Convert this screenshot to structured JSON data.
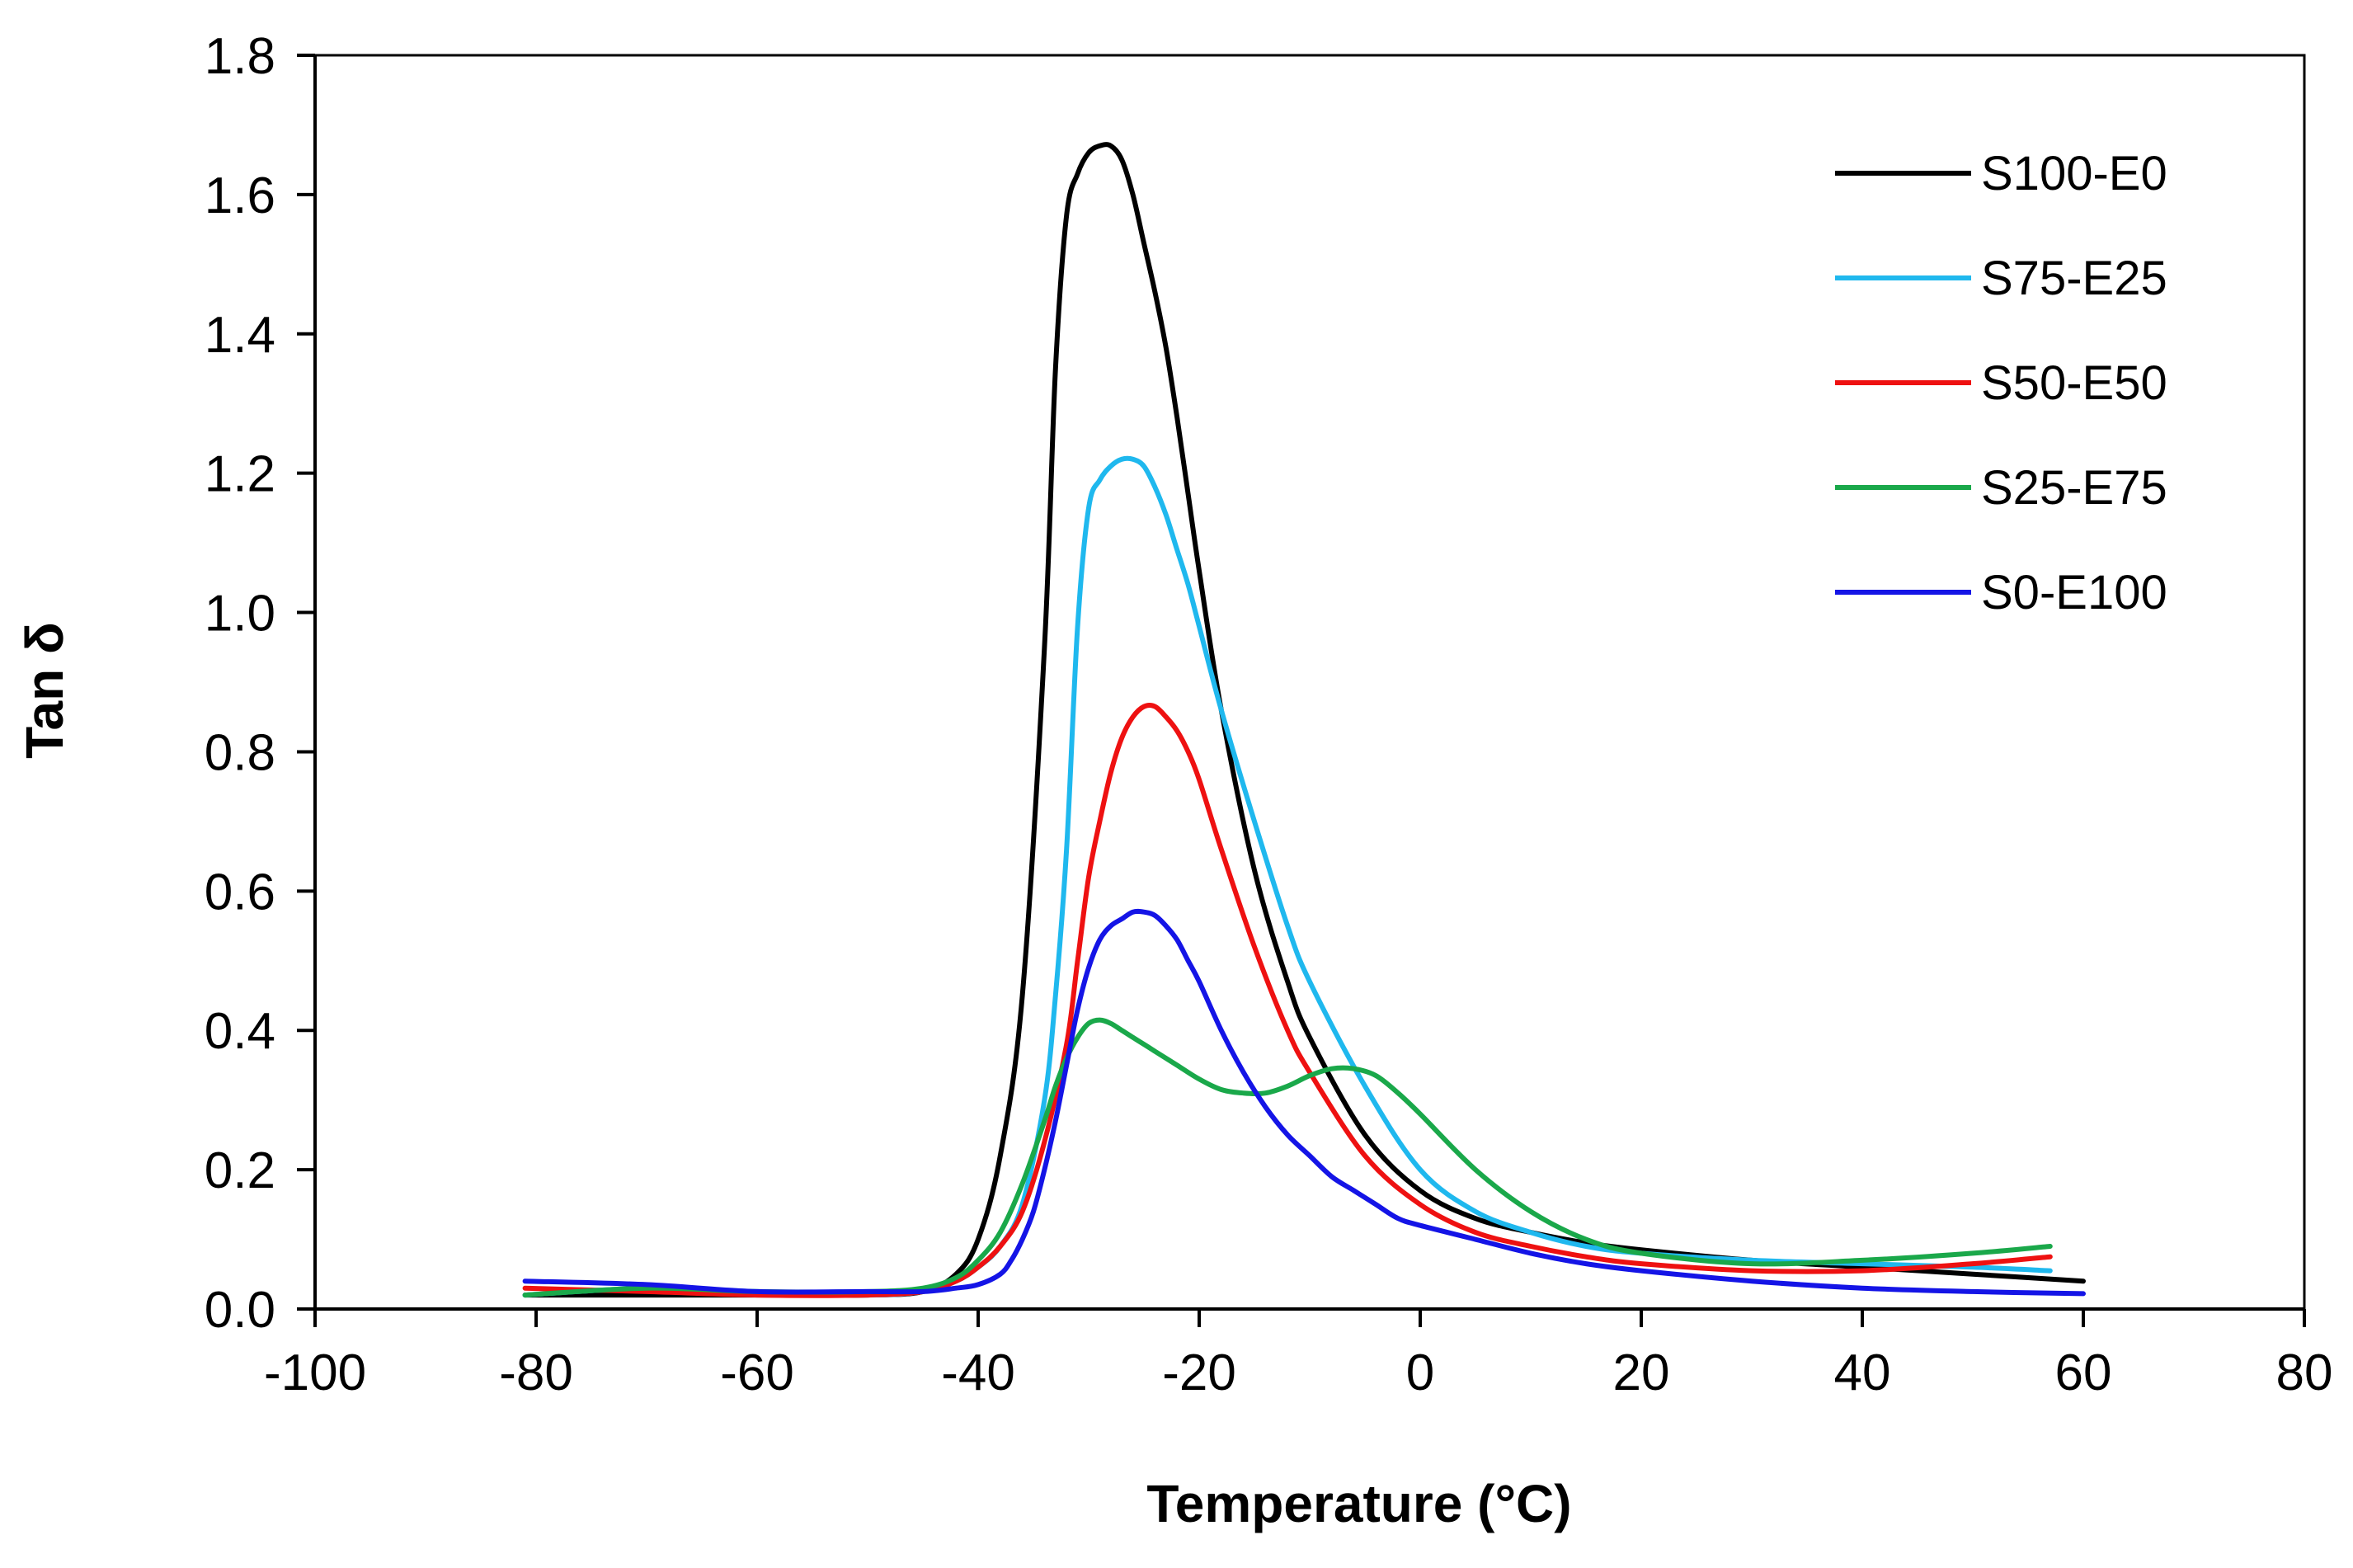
{
  "chart_data": {
    "type": "line",
    "title": "",
    "xlabel": "Temperature (°C)",
    "ylabel": "Tan δ",
    "xlim": [
      -100,
      80
    ],
    "ylim": [
      0,
      1.8
    ],
    "xticks": [
      -100,
      -80,
      -60,
      -40,
      -20,
      0,
      20,
      40,
      60,
      80
    ],
    "xtick_labels": [
      "-100",
      "-80",
      "-60",
      "-40",
      "-20",
      "0",
      "20",
      "40",
      "60",
      "80"
    ],
    "yticks": [
      0,
      0.2,
      0.4,
      0.6,
      0.8,
      1.0,
      1.2,
      1.4,
      1.6,
      1.8
    ],
    "ytick_labels": [
      "0.0",
      "0.2",
      "0.4",
      "0.6",
      "0.8",
      "1.0",
      "1.2",
      "1.4",
      "1.6",
      "1.8"
    ],
    "grid": false,
    "legend_position": "top-right",
    "series": [
      {
        "name": "S100-E0",
        "color": "#000000",
        "x": [
          -81,
          -70,
          -60,
          -50,
          -45,
          -42,
          -40,
          -38,
          -36,
          -34,
          -33,
          -32,
          -31,
          -30,
          -29,
          -28,
          -27,
          -26,
          -25,
          -24,
          -23,
          -22,
          -21,
          -20,
          -18,
          -15,
          -12,
          -10,
          -5,
          0,
          5,
          10,
          15,
          20,
          30,
          40,
          50,
          60
        ],
        "y": [
          0.02,
          0.02,
          0.02,
          0.02,
          0.025,
          0.05,
          0.1,
          0.22,
          0.45,
          0.95,
          1.35,
          1.57,
          1.63,
          1.66,
          1.67,
          1.67,
          1.65,
          1.6,
          1.53,
          1.46,
          1.38,
          1.28,
          1.17,
          1.06,
          0.86,
          0.63,
          0.47,
          0.39,
          0.25,
          0.17,
          0.13,
          0.11,
          0.095,
          0.085,
          0.07,
          0.06,
          0.05,
          0.04
        ]
      },
      {
        "name": "S75-E25",
        "color": "#1fb8ee",
        "x": [
          -81,
          -70,
          -60,
          -50,
          -45,
          -42,
          -40,
          -38,
          -36,
          -34,
          -33,
          -32,
          -31,
          -30,
          -29,
          -28,
          -27,
          -26,
          -25,
          -24,
          -23,
          -22,
          -21,
          -20,
          -18,
          -15,
          -12,
          -10,
          -5,
          0,
          5,
          10,
          15,
          20,
          30,
          40,
          50,
          57
        ],
        "y": [
          0.02,
          0.03,
          0.025,
          0.02,
          0.025,
          0.04,
          0.06,
          0.09,
          0.15,
          0.3,
          0.45,
          0.66,
          0.98,
          1.15,
          1.19,
          1.21,
          1.22,
          1.22,
          1.21,
          1.18,
          1.14,
          1.09,
          1.04,
          0.98,
          0.86,
          0.7,
          0.55,
          0.47,
          0.32,
          0.2,
          0.14,
          0.11,
          0.09,
          0.08,
          0.07,
          0.065,
          0.06,
          0.055
        ]
      },
      {
        "name": "S50-E50",
        "color": "#ee1111",
        "x": [
          -81,
          -70,
          -60,
          -50,
          -45,
          -42,
          -40,
          -38,
          -36,
          -34,
          -32,
          -31,
          -30,
          -29,
          -28,
          -27,
          -26,
          -25,
          -24,
          -23,
          -22,
          -21,
          -20,
          -18,
          -15,
          -12,
          -10,
          -5,
          0,
          5,
          10,
          15,
          20,
          30,
          40,
          50,
          57
        ],
        "y": [
          0.03,
          0.025,
          0.02,
          0.02,
          0.025,
          0.04,
          0.06,
          0.09,
          0.14,
          0.24,
          0.38,
          0.5,
          0.62,
          0.7,
          0.77,
          0.82,
          0.85,
          0.865,
          0.865,
          0.85,
          0.83,
          0.8,
          0.76,
          0.66,
          0.52,
          0.4,
          0.34,
          0.22,
          0.15,
          0.11,
          0.09,
          0.075,
          0.065,
          0.055,
          0.055,
          0.065,
          0.075
        ]
      },
      {
        "name": "S25-E75",
        "color": "#1aa84a",
        "x": [
          -81,
          -70,
          -60,
          -50,
          -45,
          -42,
          -40,
          -38,
          -36,
          -34,
          -33,
          -32,
          -31,
          -30,
          -29,
          -28,
          -27,
          -26,
          -25,
          -24,
          -22,
          -20,
          -18,
          -16,
          -14,
          -12,
          -10,
          -8,
          -6,
          -4,
          -2,
          0,
          5,
          10,
          15,
          20,
          30,
          40,
          50,
          57
        ],
        "y": [
          0.02,
          0.03,
          0.025,
          0.025,
          0.03,
          0.045,
          0.07,
          0.11,
          0.18,
          0.27,
          0.32,
          0.36,
          0.39,
          0.41,
          0.415,
          0.41,
          0.4,
          0.39,
          0.38,
          0.37,
          0.35,
          0.33,
          0.315,
          0.31,
          0.31,
          0.32,
          0.335,
          0.345,
          0.345,
          0.335,
          0.31,
          0.28,
          0.2,
          0.14,
          0.1,
          0.08,
          0.065,
          0.07,
          0.08,
          0.09
        ]
      },
      {
        "name": "S0-E100",
        "color": "#1414e6",
        "x": [
          -81,
          -70,
          -60,
          -50,
          -45,
          -42,
          -40,
          -38,
          -37,
          -36,
          -35,
          -34,
          -33,
          -32,
          -31,
          -30,
          -29,
          -28,
          -27,
          -26,
          -25,
          -24,
          -23,
          -22,
          -21,
          -20,
          -18,
          -16,
          -14,
          -12,
          -10,
          -8,
          -6,
          -4,
          -2,
          0,
          5,
          10,
          15,
          20,
          30,
          40,
          50,
          60
        ],
        "y": [
          0.04,
          0.035,
          0.025,
          0.025,
          0.025,
          0.03,
          0.035,
          0.05,
          0.07,
          0.1,
          0.14,
          0.2,
          0.27,
          0.35,
          0.43,
          0.49,
          0.53,
          0.55,
          0.56,
          0.57,
          0.57,
          0.565,
          0.55,
          0.53,
          0.5,
          0.47,
          0.4,
          0.34,
          0.29,
          0.25,
          0.22,
          0.19,
          0.17,
          0.15,
          0.13,
          0.12,
          0.1,
          0.08,
          0.065,
          0.055,
          0.04,
          0.03,
          0.025,
          0.022
        ]
      }
    ]
  }
}
